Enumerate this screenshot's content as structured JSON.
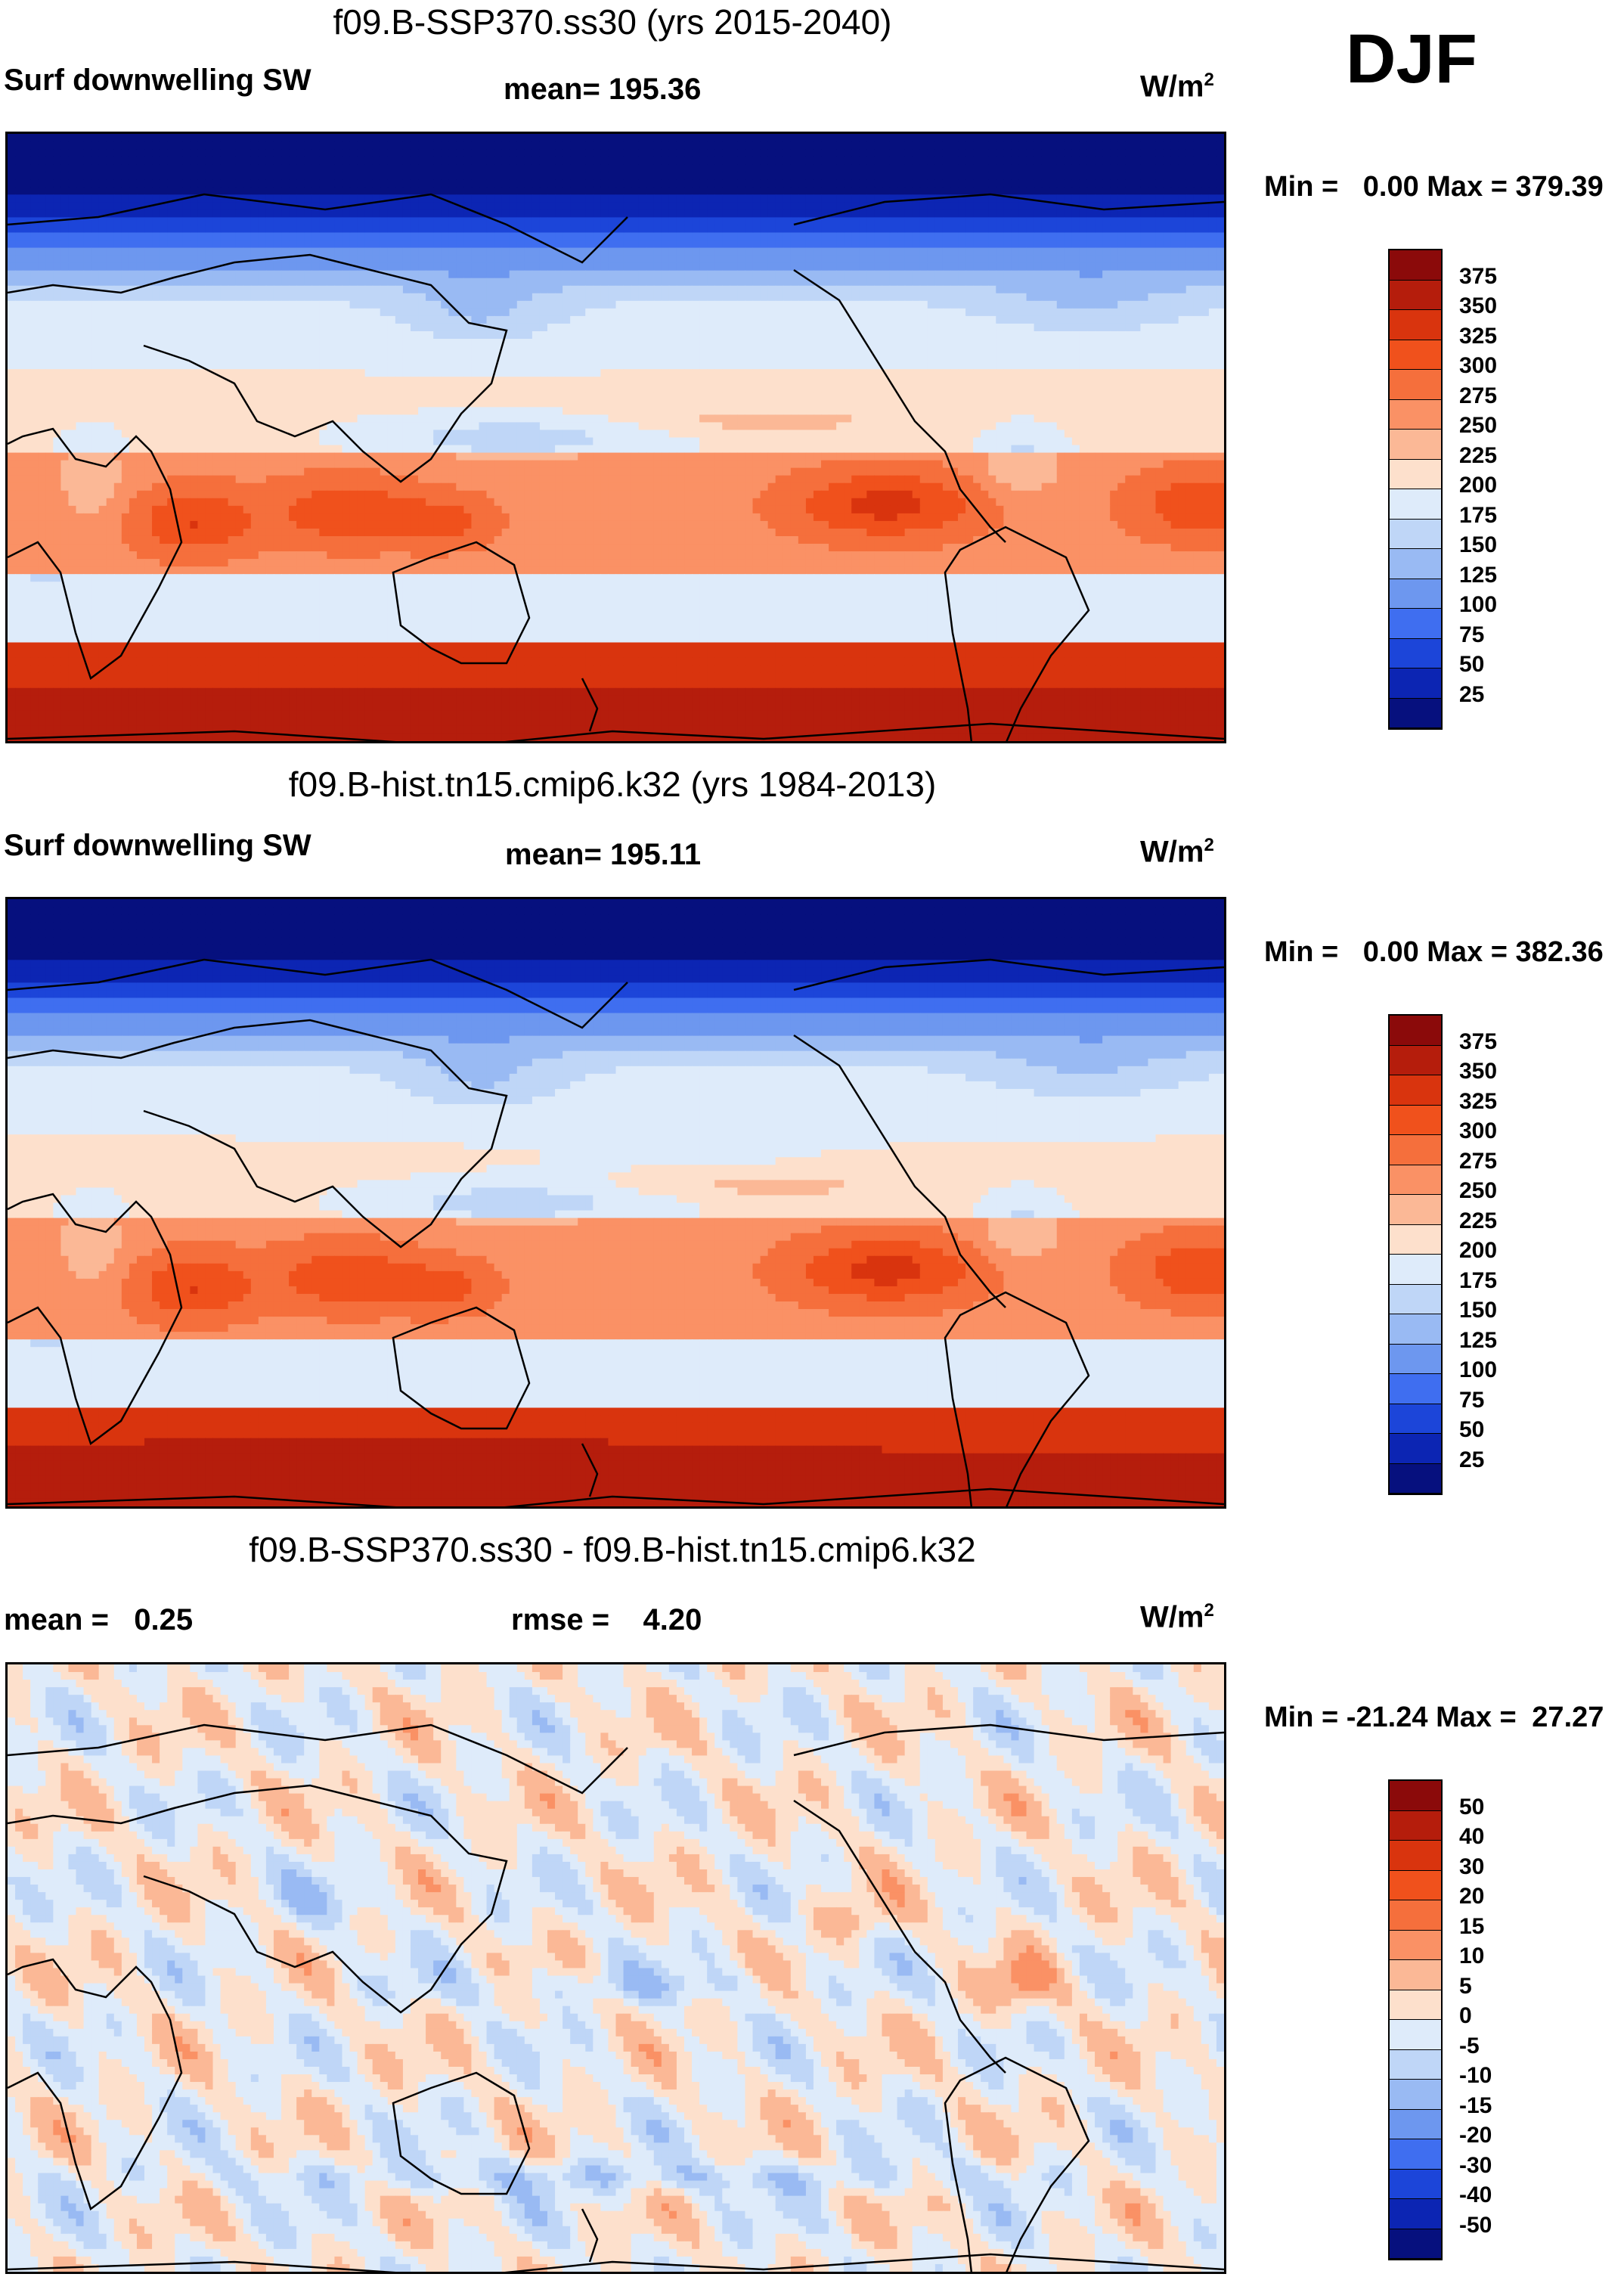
{
  "season": "DJF",
  "panels": [
    {
      "title": "f09.B-SSP370.ss30 (yrs 2015-2040)",
      "left_label": "Surf downwelling SW",
      "center_label": "mean= 195.36",
      "units_base": "W/m",
      "units_exp": "2",
      "min_label": "Min =",
      "min_value": "0.00",
      "max_label": "Max =",
      "max_value": "379.39",
      "field": "absolute"
    },
    {
      "title": "f09.B-hist.tn15.cmip6.k32 (yrs 1984-2013)",
      "left_label": "Surf downwelling SW",
      "center_label": "mean= 195.11",
      "units_base": "W/m",
      "units_exp": "2",
      "min_label": "Min =",
      "min_value": "0.00",
      "max_label": "Max =",
      "max_value": "382.36",
      "field": "absolute"
    },
    {
      "title": "f09.B-SSP370.ss30 - f09.B-hist.tn15.cmip6.k32",
      "left_label": "mean =   0.25",
      "center_label": "rmse =    4.20",
      "units_base": "W/m",
      "units_exp": "2",
      "min_label": "Min =",
      "min_value": "-21.24",
      "max_label": "Max =",
      "max_value": "27.27",
      "field": "difference"
    }
  ],
  "chart_data": [
    {
      "type": "heatmap",
      "title": "f09.B-SSP370.ss30 (yrs 2015-2040)",
      "variable": "Surf downwelling SW",
      "units": "W/m2",
      "mean": 195.36,
      "min": 0.0,
      "max": 379.39,
      "colorbar_levels": [
        375,
        350,
        325,
        300,
        275,
        250,
        225,
        200,
        175,
        150,
        125,
        100,
        75,
        50,
        25
      ]
    },
    {
      "type": "heatmap",
      "title": "f09.B-hist.tn15.cmip6.k32 (yrs 1984-2013)",
      "variable": "Surf downwelling SW",
      "units": "W/m2",
      "mean": 195.11,
      "min": 0.0,
      "max": 382.36,
      "colorbar_levels": [
        375,
        350,
        325,
        300,
        275,
        250,
        225,
        200,
        175,
        150,
        125,
        100,
        75,
        50,
        25
      ]
    },
    {
      "type": "heatmap",
      "title": "f09.B-SSP370.ss30 - f09.B-hist.tn15.cmip6.k32",
      "variable": "Surf downwelling SW difference",
      "units": "W/m2",
      "mean": 0.25,
      "rmse": 4.2,
      "min": -21.24,
      "max": 27.27,
      "colorbar_levels": [
        50,
        40,
        30,
        20,
        15,
        10,
        5,
        0,
        -5,
        -10,
        -15,
        -20,
        -30,
        -40,
        -50
      ]
    }
  ],
  "colorbars": {
    "absolute": {
      "labels": [
        "375",
        "350",
        "325",
        "300",
        "275",
        "250",
        "225",
        "200",
        "175",
        "150",
        "125",
        "100",
        "75",
        "50",
        "25"
      ],
      "colors": [
        "#8b0a0a",
        "#b51d0c",
        "#d9340e",
        "#f0511c",
        "#f56f3c",
        "#fa9165",
        "#fbb896",
        "#fde0cc",
        "#deebfa",
        "#bfd6f7",
        "#99baf3",
        "#6d97ef",
        "#3f6ef0",
        "#1c45d9",
        "#0c25b3",
        "#06107e"
      ]
    },
    "difference": {
      "labels": [
        "50",
        "40",
        "30",
        "20",
        "15",
        "10",
        "5",
        "0",
        "-5",
        "-10",
        "-15",
        "-20",
        "-30",
        "-40",
        "-50"
      ],
      "colors": [
        "#8b0a0a",
        "#b51d0c",
        "#d9340e",
        "#f0511c",
        "#f56f3c",
        "#fa9165",
        "#fbb896",
        "#fde0cc",
        "#deebfa",
        "#bfd6f7",
        "#99baf3",
        "#6d97ef",
        "#3f6ef0",
        "#1c45d9",
        "#0c25b3",
        "#06107e"
      ]
    }
  }
}
